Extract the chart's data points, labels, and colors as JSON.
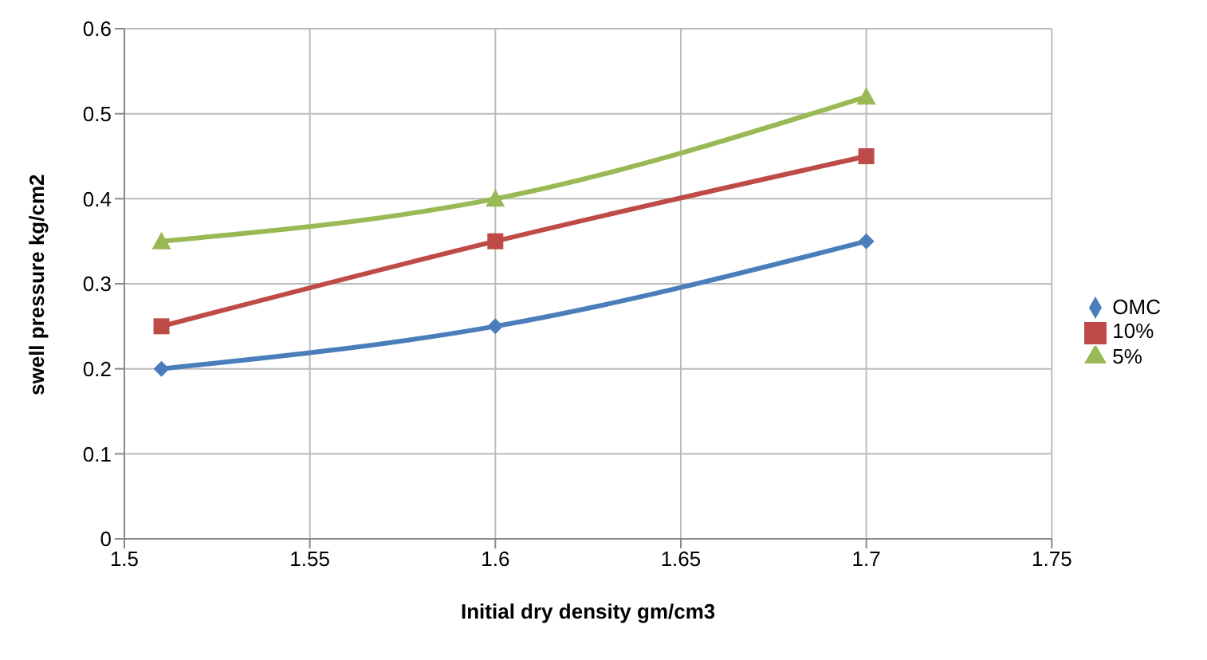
{
  "chart_data": {
    "type": "line",
    "xlabel": "Initial dry density gm/cm3",
    "ylabel": "swell pressure kg/cm2",
    "x": [
      1.51,
      1.6,
      1.7
    ],
    "series": [
      {
        "name": "OMC",
        "color": "#4a7ebb",
        "values": [
          0.2,
          0.25,
          0.35
        ],
        "marker": "diamond"
      },
      {
        "name": "10%",
        "color": "#be4b48",
        "values": [
          0.25,
          0.35,
          0.45
        ],
        "marker": "square"
      },
      {
        "name": "5%",
        "color": "#98b954",
        "values": [
          0.35,
          0.4,
          0.52
        ],
        "marker": "triangle"
      }
    ],
    "xlim": [
      1.5,
      1.75
    ],
    "xticks": [
      1.5,
      1.55,
      1.6,
      1.65,
      1.7,
      1.75
    ],
    "ylim": [
      0,
      0.6
    ],
    "yticks": [
      0,
      0.1,
      0.2,
      0.3,
      0.4,
      0.5,
      0.6
    ],
    "grid": true,
    "legend": "right",
    "line_style": "solid"
  }
}
